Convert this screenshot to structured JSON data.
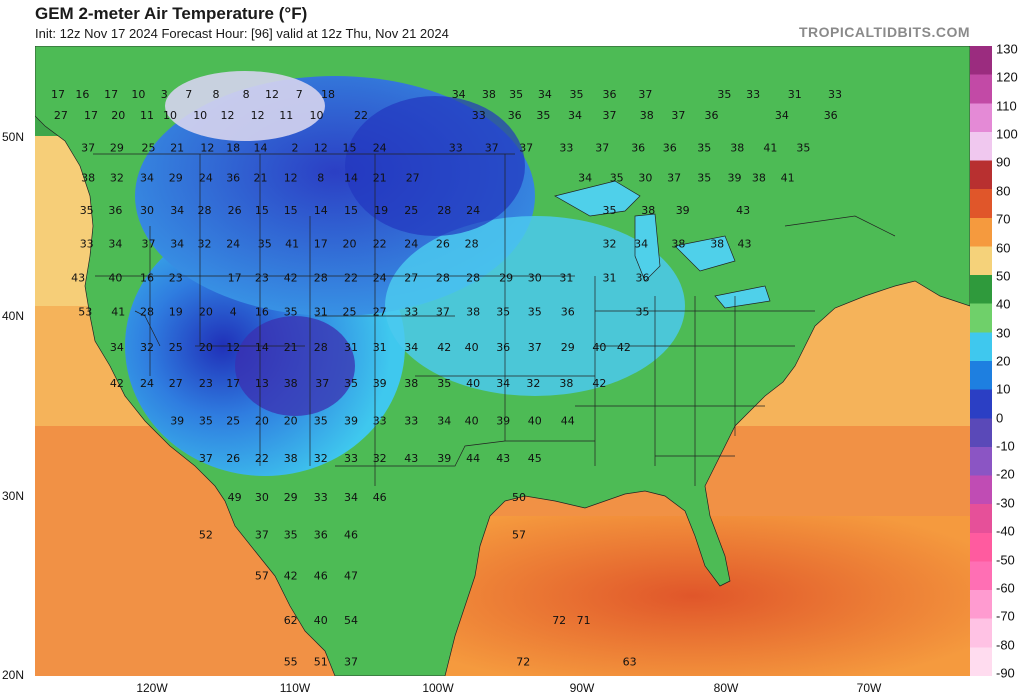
{
  "header": {
    "title": "GEM 2-meter Air Temperature (°F)",
    "subtitle": "Init: 12z Nov 17 2024   Forecast Hour: [96]   valid at 12z Thu, Nov 21 2024",
    "site": "TROPICALTIDBITS.COM"
  },
  "lat_labels": [
    "50N",
    "40N",
    "30N",
    "20N"
  ],
  "lon_labels": [
    "120W",
    "110W",
    "100W",
    "90W",
    "80W",
    "70W"
  ],
  "colorbar": {
    "ticks": [
      "130",
      "120",
      "110",
      "100",
      "90",
      "80",
      "70",
      "60",
      "50",
      "40",
      "30",
      "20",
      "10",
      "0",
      "-10",
      "-20",
      "-30",
      "-40",
      "-50",
      "-60",
      "-70",
      "-80",
      "-90"
    ],
    "stops": [
      "#9b2c7f",
      "#c24aa6",
      "#e48ad6",
      "#f0c8ef",
      "#b83030",
      "#e0562a",
      "#f59a3e",
      "#f5d27a",
      "#2f9a3c",
      "#6fd06a",
      "#3fc8ee",
      "#1e7fe0",
      "#2b3fc4",
      "#5a49b8",
      "#8b55c4",
      "#c04cb4",
      "#e65099",
      "#ff5b9f",
      "#ff6fb4",
      "#ff9bd0",
      "#ffc2e4",
      "#ffdcef"
    ]
  },
  "stations": [
    {
      "v": "17",
      "lon": -126.5,
      "lat": 52.4
    },
    {
      "v": "16",
      "lon": -124.8,
      "lat": 52.4
    },
    {
      "v": "17",
      "lon": -122.8,
      "lat": 52.4
    },
    {
      "v": "10",
      "lon": -120.9,
      "lat": 52.4
    },
    {
      "v": "3",
      "lon": -119.1,
      "lat": 52.4
    },
    {
      "v": "7",
      "lon": -117.4,
      "lat": 52.4
    },
    {
      "v": "8",
      "lon": -115.5,
      "lat": 52.4
    },
    {
      "v": "8",
      "lon": -113.4,
      "lat": 52.4
    },
    {
      "v": "12",
      "lon": -111.6,
      "lat": 52.4
    },
    {
      "v": "7",
      "lon": -109.7,
      "lat": 52.4
    },
    {
      "v": "18",
      "lon": -107.7,
      "lat": 52.4
    },
    {
      "v": "34",
      "lon": -98.6,
      "lat": 52.4
    },
    {
      "v": "38",
      "lon": -96.5,
      "lat": 52.4
    },
    {
      "v": "35",
      "lon": -94.6,
      "lat": 52.4
    },
    {
      "v": "34",
      "lon": -92.6,
      "lat": 52.4
    },
    {
      "v": "35",
      "lon": -90.4,
      "lat": 52.4
    },
    {
      "v": "36",
      "lon": -88.1,
      "lat": 52.4
    },
    {
      "v": "37",
      "lon": -85.6,
      "lat": 52.4
    },
    {
      "v": "35",
      "lon": -80.1,
      "lat": 52.4
    },
    {
      "v": "33",
      "lon": -78.1,
      "lat": 52.4
    },
    {
      "v": "31",
      "lon": -75.2,
      "lat": 52.4
    },
    {
      "v": "33",
      "lon": -72.4,
      "lat": 52.4
    },
    {
      "v": "27",
      "lon": -126.3,
      "lat": 51.2
    },
    {
      "v": "17",
      "lon": -124.2,
      "lat": 51.2
    },
    {
      "v": "20",
      "lon": -122.3,
      "lat": 51.2
    },
    {
      "v": "11",
      "lon": -120.3,
      "lat": 51.2
    },
    {
      "v": "10",
      "lon": -118.7,
      "lat": 51.2
    },
    {
      "v": "10",
      "lon": -116.6,
      "lat": 51.2
    },
    {
      "v": "12",
      "lon": -114.7,
      "lat": 51.2
    },
    {
      "v": "12",
      "lon": -112.6,
      "lat": 51.2
    },
    {
      "v": "11",
      "lon": -110.6,
      "lat": 51.2
    },
    {
      "v": "10",
      "lon": -108.5,
      "lat": 51.2
    },
    {
      "v": "22",
      "lon": -105.4,
      "lat": 51.2
    },
    {
      "v": "33",
      "lon": -97.2,
      "lat": 51.2
    },
    {
      "v": "36",
      "lon": -94.7,
      "lat": 51.2
    },
    {
      "v": "35",
      "lon": -92.7,
      "lat": 51.2
    },
    {
      "v": "34",
      "lon": -90.5,
      "lat": 51.2
    },
    {
      "v": "37",
      "lon": -88.1,
      "lat": 51.2
    },
    {
      "v": "38",
      "lon": -85.5,
      "lat": 51.2
    },
    {
      "v": "37",
      "lon": -83.3,
      "lat": 51.2
    },
    {
      "v": "36",
      "lon": -81.0,
      "lat": 51.2
    },
    {
      "v": "34",
      "lon": -76.1,
      "lat": 51.2
    },
    {
      "v": "36",
      "lon": -72.7,
      "lat": 51.2
    },
    {
      "v": "37",
      "lon": -124.4,
      "lat": 49.4
    },
    {
      "v": "29",
      "lon": -122.4,
      "lat": 49.4
    },
    {
      "v": "25",
      "lon": -120.2,
      "lat": 49.4
    },
    {
      "v": "21",
      "lon": -118.2,
      "lat": 49.4
    },
    {
      "v": "12",
      "lon": -116.1,
      "lat": 49.4
    },
    {
      "v": "18",
      "lon": -114.3,
      "lat": 49.4
    },
    {
      "v": "14",
      "lon": -112.4,
      "lat": 49.4
    },
    {
      "v": "2",
      "lon": -110.0,
      "lat": 49.4
    },
    {
      "v": "12",
      "lon": -108.2,
      "lat": 49.4
    },
    {
      "v": "15",
      "lon": -106.2,
      "lat": 49.4
    },
    {
      "v": "24",
      "lon": -104.1,
      "lat": 49.4
    },
    {
      "v": "33",
      "lon": -98.8,
      "lat": 49.4
    },
    {
      "v": "37",
      "lon": -96.3,
      "lat": 49.4
    },
    {
      "v": "37",
      "lon": -93.9,
      "lat": 49.4
    },
    {
      "v": "33",
      "lon": -91.1,
      "lat": 49.4
    },
    {
      "v": "37",
      "lon": -88.6,
      "lat": 49.4
    },
    {
      "v": "36",
      "lon": -86.1,
      "lat": 49.4
    },
    {
      "v": "36",
      "lon": -83.9,
      "lat": 49.4
    },
    {
      "v": "35",
      "lon": -81.5,
      "lat": 49.4
    },
    {
      "v": "38",
      "lon": -79.2,
      "lat": 49.4
    },
    {
      "v": "41",
      "lon": -76.9,
      "lat": 49.4
    },
    {
      "v": "35",
      "lon": -74.6,
      "lat": 49.4
    },
    {
      "v": "38",
      "lon": -124.4,
      "lat": 47.7
    },
    {
      "v": "32",
      "lon": -122.4,
      "lat": 47.7
    },
    {
      "v": "34",
      "lon": -120.3,
      "lat": 47.7
    },
    {
      "v": "29",
      "lon": -118.3,
      "lat": 47.7
    },
    {
      "v": "24",
      "lon": -116.2,
      "lat": 47.7
    },
    {
      "v": "36",
      "lon": -114.3,
      "lat": 47.7
    },
    {
      "v": "21",
      "lon": -112.4,
      "lat": 47.7
    },
    {
      "v": "12",
      "lon": -110.3,
      "lat": 47.7
    },
    {
      "v": "8",
      "lon": -108.2,
      "lat": 47.7
    },
    {
      "v": "14",
      "lon": -106.1,
      "lat": 47.7
    },
    {
      "v": "21",
      "lon": -104.1,
      "lat": 47.7
    },
    {
      "v": "27",
      "lon": -101.8,
      "lat": 47.7
    },
    {
      "v": "34",
      "lon": -89.8,
      "lat": 47.7
    },
    {
      "v": "35",
      "lon": -87.6,
      "lat": 47.7
    },
    {
      "v": "30",
      "lon": -85.6,
      "lat": 47.7
    },
    {
      "v": "37",
      "lon": -83.6,
      "lat": 47.7
    },
    {
      "v": "35",
      "lon": -81.5,
      "lat": 47.7
    },
    {
      "v": "39",
      "lon": -79.4,
      "lat": 47.7
    },
    {
      "v": "38",
      "lon": -77.7,
      "lat": 47.7
    },
    {
      "v": "41",
      "lon": -75.7,
      "lat": 47.7
    },
    {
      "v": "35",
      "lon": -124.5,
      "lat": 45.9
    },
    {
      "v": "36",
      "lon": -122.5,
      "lat": 45.9
    },
    {
      "v": "30",
      "lon": -120.3,
      "lat": 45.9
    },
    {
      "v": "34",
      "lon": -118.2,
      "lat": 45.9
    },
    {
      "v": "28",
      "lon": -116.3,
      "lat": 45.9
    },
    {
      "v": "26",
      "lon": -114.2,
      "lat": 45.9
    },
    {
      "v": "15",
      "lon": -112.3,
      "lat": 45.9
    },
    {
      "v": "15",
      "lon": -110.3,
      "lat": 45.9
    },
    {
      "v": "14",
      "lon": -108.2,
      "lat": 45.9
    },
    {
      "v": "15",
      "lon": -106.1,
      "lat": 45.9
    },
    {
      "v": "19",
      "lon": -104.0,
      "lat": 45.9
    },
    {
      "v": "25",
      "lon": -101.9,
      "lat": 45.9
    },
    {
      "v": "28",
      "lon": -99.6,
      "lat": 45.9
    },
    {
      "v": "24",
      "lon": -97.6,
      "lat": 45.9
    },
    {
      "v": "35",
      "lon": -88.1,
      "lat": 45.9
    },
    {
      "v": "38",
      "lon": -85.4,
      "lat": 45.9
    },
    {
      "v": "39",
      "lon": -83.0,
      "lat": 45.9
    },
    {
      "v": "43",
      "lon": -78.8,
      "lat": 45.9
    },
    {
      "v": "33",
      "lon": -124.5,
      "lat": 44.0
    },
    {
      "v": "34",
      "lon": -122.5,
      "lat": 44.0
    },
    {
      "v": "37",
      "lon": -120.2,
      "lat": 44.0
    },
    {
      "v": "34",
      "lon": -118.2,
      "lat": 44.0
    },
    {
      "v": "32",
      "lon": -116.3,
      "lat": 44.0
    },
    {
      "v": "24",
      "lon": -114.3,
      "lat": 44.0
    },
    {
      "v": "35",
      "lon": -112.1,
      "lat": 44.0
    },
    {
      "v": "41",
      "lon": -110.2,
      "lat": 44.0
    },
    {
      "v": "17",
      "lon": -108.2,
      "lat": 44.0
    },
    {
      "v": "20",
      "lon": -106.2,
      "lat": 44.0
    },
    {
      "v": "22",
      "lon": -104.1,
      "lat": 44.0
    },
    {
      "v": "24",
      "lon": -101.9,
      "lat": 44.0
    },
    {
      "v": "26",
      "lon": -99.7,
      "lat": 44.0
    },
    {
      "v": "28",
      "lon": -97.7,
      "lat": 44.0
    },
    {
      "v": "32",
      "lon": -88.1,
      "lat": 44.0
    },
    {
      "v": "34",
      "lon": -85.9,
      "lat": 44.0
    },
    {
      "v": "38",
      "lon": -83.3,
      "lat": 44.0
    },
    {
      "v": "38",
      "lon": -80.6,
      "lat": 44.0
    },
    {
      "v": "43",
      "lon": -78.7,
      "lat": 44.0
    },
    {
      "v": "43",
      "lon": -125.1,
      "lat": 42.1
    },
    {
      "v": "40",
      "lon": -122.5,
      "lat": 42.1
    },
    {
      "v": "16",
      "lon": -120.3,
      "lat": 42.1
    },
    {
      "v": "23",
      "lon": -118.3,
      "lat": 42.1
    },
    {
      "v": "17",
      "lon": -114.2,
      "lat": 42.1
    },
    {
      "v": "23",
      "lon": -112.3,
      "lat": 42.1
    },
    {
      "v": "42",
      "lon": -110.3,
      "lat": 42.1
    },
    {
      "v": "28",
      "lon": -108.2,
      "lat": 42.1
    },
    {
      "v": "22",
      "lon": -106.1,
      "lat": 42.1
    },
    {
      "v": "24",
      "lon": -104.1,
      "lat": 42.1
    },
    {
      "v": "27",
      "lon": -101.9,
      "lat": 42.1
    },
    {
      "v": "28",
      "lon": -99.7,
      "lat": 42.1
    },
    {
      "v": "28",
      "lon": -97.6,
      "lat": 42.1
    },
    {
      "v": "29",
      "lon": -95.3,
      "lat": 42.1
    },
    {
      "v": "30",
      "lon": -93.3,
      "lat": 42.1
    },
    {
      "v": "31",
      "lon": -91.1,
      "lat": 42.1
    },
    {
      "v": "31",
      "lon": -88.1,
      "lat": 42.1
    },
    {
      "v": "36",
      "lon": -85.8,
      "lat": 42.1
    },
    {
      "v": "53",
      "lon": -124.6,
      "lat": 40.2
    },
    {
      "v": "41",
      "lon": -122.3,
      "lat": 40.2
    },
    {
      "v": "28",
      "lon": -120.3,
      "lat": 40.2
    },
    {
      "v": "19",
      "lon": -118.3,
      "lat": 40.2
    },
    {
      "v": "20",
      "lon": -116.2,
      "lat": 40.2
    },
    {
      "v": "4",
      "lon": -114.3,
      "lat": 40.2
    },
    {
      "v": "16",
      "lon": -112.3,
      "lat": 40.2
    },
    {
      "v": "35",
      "lon": -110.3,
      "lat": 40.2
    },
    {
      "v": "31",
      "lon": -108.2,
      "lat": 40.2
    },
    {
      "v": "25",
      "lon": -106.2,
      "lat": 40.2
    },
    {
      "v": "27",
      "lon": -104.1,
      "lat": 40.2
    },
    {
      "v": "33",
      "lon": -101.9,
      "lat": 40.2
    },
    {
      "v": "37",
      "lon": -99.7,
      "lat": 40.2
    },
    {
      "v": "38",
      "lon": -97.6,
      "lat": 40.2
    },
    {
      "v": "35",
      "lon": -95.5,
      "lat": 40.2
    },
    {
      "v": "35",
      "lon": -93.3,
      "lat": 40.2
    },
    {
      "v": "36",
      "lon": -91.0,
      "lat": 40.2
    },
    {
      "v": "35",
      "lon": -85.8,
      "lat": 40.2
    },
    {
      "v": "34",
      "lon": -122.4,
      "lat": 38.2
    },
    {
      "v": "32",
      "lon": -120.3,
      "lat": 38.2
    },
    {
      "v": "25",
      "lon": -118.3,
      "lat": 38.2
    },
    {
      "v": "20",
      "lon": -116.2,
      "lat": 38.2
    },
    {
      "v": "12",
      "lon": -114.3,
      "lat": 38.2
    },
    {
      "v": "14",
      "lon": -112.3,
      "lat": 38.2
    },
    {
      "v": "21",
      "lon": -110.3,
      "lat": 38.2
    },
    {
      "v": "28",
      "lon": -108.2,
      "lat": 38.2
    },
    {
      "v": "31",
      "lon": -106.1,
      "lat": 38.2
    },
    {
      "v": "31",
      "lon": -104.1,
      "lat": 38.2
    },
    {
      "v": "34",
      "lon": -101.9,
      "lat": 38.2
    },
    {
      "v": "42",
      "lon": -99.6,
      "lat": 38.2
    },
    {
      "v": "40",
      "lon": -97.7,
      "lat": 38.2
    },
    {
      "v": "36",
      "lon": -95.5,
      "lat": 38.2
    },
    {
      "v": "37",
      "lon": -93.3,
      "lat": 38.2
    },
    {
      "v": "29",
      "lon": -91.0,
      "lat": 38.2
    },
    {
      "v": "40",
      "lon": -88.8,
      "lat": 38.2
    },
    {
      "v": "42",
      "lon": -87.1,
      "lat": 38.2
    },
    {
      "v": "42",
      "lon": -122.4,
      "lat": 36.2
    },
    {
      "v": "24",
      "lon": -120.3,
      "lat": 36.2
    },
    {
      "v": "27",
      "lon": -118.3,
      "lat": 36.2
    },
    {
      "v": "23",
      "lon": -116.2,
      "lat": 36.2
    },
    {
      "v": "17",
      "lon": -114.3,
      "lat": 36.2
    },
    {
      "v": "13",
      "lon": -112.3,
      "lat": 36.2
    },
    {
      "v": "38",
      "lon": -110.3,
      "lat": 36.2
    },
    {
      "v": "37",
      "lon": -108.1,
      "lat": 36.2
    },
    {
      "v": "35",
      "lon": -106.1,
      "lat": 36.2
    },
    {
      "v": "39",
      "lon": -104.1,
      "lat": 36.2
    },
    {
      "v": "38",
      "lon": -101.9,
      "lat": 36.2
    },
    {
      "v": "35",
      "lon": -99.6,
      "lat": 36.2
    },
    {
      "v": "40",
      "lon": -97.6,
      "lat": 36.2
    },
    {
      "v": "34",
      "lon": -95.5,
      "lat": 36.2
    },
    {
      "v": "32",
      "lon": -93.4,
      "lat": 36.2
    },
    {
      "v": "38",
      "lon": -91.1,
      "lat": 36.2
    },
    {
      "v": "42",
      "lon": -88.8,
      "lat": 36.2
    },
    {
      "v": "39",
      "lon": -118.2,
      "lat": 34.1
    },
    {
      "v": "35",
      "lon": -116.2,
      "lat": 34.1
    },
    {
      "v": "25",
      "lon": -114.3,
      "lat": 34.1
    },
    {
      "v": "20",
      "lon": -112.3,
      "lat": 34.1
    },
    {
      "v": "20",
      "lon": -110.3,
      "lat": 34.1
    },
    {
      "v": "35",
      "lon": -108.2,
      "lat": 34.1
    },
    {
      "v": "39",
      "lon": -106.1,
      "lat": 34.1
    },
    {
      "v": "33",
      "lon": -104.1,
      "lat": 34.1
    },
    {
      "v": "33",
      "lon": -101.9,
      "lat": 34.1
    },
    {
      "v": "34",
      "lon": -99.6,
      "lat": 34.1
    },
    {
      "v": "40",
      "lon": -97.7,
      "lat": 34.1
    },
    {
      "v": "39",
      "lon": -95.5,
      "lat": 34.1
    },
    {
      "v": "40",
      "lon": -93.3,
      "lat": 34.1
    },
    {
      "v": "44",
      "lon": -91.0,
      "lat": 34.1
    },
    {
      "v": "37",
      "lon": -116.2,
      "lat": 32.0
    },
    {
      "v": "26",
      "lon": -114.3,
      "lat": 32.0
    },
    {
      "v": "22",
      "lon": -112.3,
      "lat": 32.0
    },
    {
      "v": "38",
      "lon": -110.3,
      "lat": 32.0
    },
    {
      "v": "32",
      "lon": -108.2,
      "lat": 32.0
    },
    {
      "v": "33",
      "lon": -106.1,
      "lat": 32.0
    },
    {
      "v": "32",
      "lon": -104.1,
      "lat": 32.0
    },
    {
      "v": "43",
      "lon": -101.9,
      "lat": 32.0
    },
    {
      "v": "39",
      "lon": -99.6,
      "lat": 32.0
    },
    {
      "v": "44",
      "lon": -97.6,
      "lat": 32.0
    },
    {
      "v": "43",
      "lon": -95.5,
      "lat": 32.0
    },
    {
      "v": "45",
      "lon": -93.3,
      "lat": 32.0
    },
    {
      "v": "49",
      "lon": -114.2,
      "lat": 29.8
    },
    {
      "v": "30",
      "lon": -112.3,
      "lat": 29.8
    },
    {
      "v": "29",
      "lon": -110.3,
      "lat": 29.8
    },
    {
      "v": "33",
      "lon": -108.2,
      "lat": 29.8
    },
    {
      "v": "34",
      "lon": -106.1,
      "lat": 29.8
    },
    {
      "v": "46",
      "lon": -104.1,
      "lat": 29.8
    },
    {
      "v": "50",
      "lon": -94.4,
      "lat": 29.8
    },
    {
      "v": "52",
      "lon": -116.2,
      "lat": 27.7
    },
    {
      "v": "37",
      "lon": -112.3,
      "lat": 27.7
    },
    {
      "v": "35",
      "lon": -110.3,
      "lat": 27.7
    },
    {
      "v": "36",
      "lon": -108.2,
      "lat": 27.7
    },
    {
      "v": "46",
      "lon": -106.1,
      "lat": 27.7
    },
    {
      "v": "57",
      "lon": -94.4,
      "lat": 27.7
    },
    {
      "v": "57",
      "lon": -112.3,
      "lat": 25.4
    },
    {
      "v": "42",
      "lon": -110.3,
      "lat": 25.4
    },
    {
      "v": "46",
      "lon": -108.2,
      "lat": 25.4
    },
    {
      "v": "47",
      "lon": -106.1,
      "lat": 25.4
    },
    {
      "v": "62",
      "lon": -110.3,
      "lat": 22.9
    },
    {
      "v": "40",
      "lon": -108.2,
      "lat": 22.9
    },
    {
      "v": "54",
      "lon": -106.1,
      "lat": 22.9
    },
    {
      "v": "72",
      "lon": -91.6,
      "lat": 22.9
    },
    {
      "v": "71",
      "lon": -89.9,
      "lat": 22.9
    },
    {
      "v": "55",
      "lon": -110.3,
      "lat": 20.6
    },
    {
      "v": "51",
      "lon": -108.2,
      "lat": 20.6
    },
    {
      "v": "37",
      "lon": -106.1,
      "lat": 20.6
    },
    {
      "v": "72",
      "lon": -94.1,
      "lat": 20.6
    },
    {
      "v": "63",
      "lon": -86.7,
      "lat": 20.6
    }
  ]
}
